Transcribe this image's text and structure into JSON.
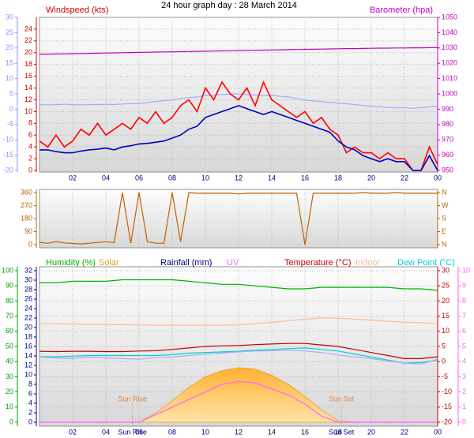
{
  "chart_data": [
    {
      "type": "line",
      "title": "24 hour graph day : 28 March 2014",
      "x": [
        0,
        0.5,
        1,
        1.5,
        2,
        2.5,
        3,
        3.5,
        4,
        4.5,
        5,
        5.5,
        6,
        6.5,
        7,
        7.5,
        8,
        8.5,
        9,
        9.5,
        10,
        10.5,
        11,
        11.5,
        12,
        12.5,
        13,
        13.5,
        14,
        14.5,
        15,
        15.5,
        16,
        16.5,
        17,
        17.5,
        18,
        18.5,
        19,
        19.5,
        20,
        20.5,
        21,
        21.5,
        22,
        22.5,
        23,
        23.5,
        24
      ],
      "xlim": [
        0,
        24
      ],
      "xticks": [
        {
          "value": 2,
          "label": "02"
        },
        {
          "value": 4,
          "label": "04"
        },
        {
          "value": 6,
          "label": "06"
        },
        {
          "value": 8,
          "label": "08"
        },
        10,
        12,
        14,
        16,
        18,
        20,
        22,
        {
          "value": 24,
          "label": "00"
        }
      ],
      "grid": true,
      "axes": [
        {
          "id": "y3",
          "side": "left",
          "color": "#9090ff",
          "lim": [
            -20,
            30
          ],
          "ticks": [
            -20,
            -15,
            -10,
            -5,
            0,
            5,
            10,
            15,
            20,
            25,
            30
          ]
        },
        {
          "id": "y",
          "side": "left",
          "color": "#d00000",
          "title": "Windspeed (kts)",
          "lim": [
            0,
            26
          ],
          "ticks": [
            0,
            2,
            4,
            6,
            8,
            10,
            12,
            14,
            16,
            18,
            20,
            22,
            24
          ]
        },
        {
          "id": "y2",
          "side": "right",
          "color": "#c000c0",
          "title": "Barometer (hpa)",
          "lim": [
            950,
            1050
          ],
          "ticks": [
            950,
            960,
            970,
            980,
            990,
            1000,
            1010,
            1020,
            1030,
            1040,
            1050
          ]
        }
      ],
      "series": [
        {
          "color": "#a8a8ff",
          "axis": "y3",
          "values": [
            1.5,
            1.4,
            1.5,
            1.6,
            1.5,
            1.4,
            1.5,
            1.5,
            1.6,
            1.5,
            1.7,
            1.8,
            1.8,
            2.2,
            2.5,
            2.8,
            3.0,
            3.5,
            3.8,
            4.0,
            4.5,
            4.6,
            4.8,
            5.0,
            5.0,
            4.8,
            4.7,
            4.5,
            4.6,
            4.2,
            4.0,
            3.5,
            3.0,
            2.7,
            2.5,
            2.2,
            2.0,
            1.8,
            1.5,
            1.2,
            1.0,
            0.8,
            0.6,
            0.5,
            0.5,
            0.3,
            0.5,
            0.8,
            1.0
          ]
        },
        {
          "color": "#c000c0",
          "axis": "y2",
          "values": [
            1026,
            1026,
            1026.1,
            1026.2,
            1026.3,
            1026.4,
            1026.5,
            1026.6,
            1026.7,
            1026.8,
            1026.9,
            1027,
            1027.1,
            1027.2,
            1027.3,
            1027.4,
            1027.5,
            1027.6,
            1027.7,
            1027.8,
            1027.9,
            1028,
            1028.1,
            1028.2,
            1028.3,
            1028.4,
            1028.5,
            1028.6,
            1028.7,
            1028.8,
            1028.9,
            1029,
            1029.1,
            1029.2,
            1029.3,
            1029.4,
            1029.5,
            1029.6,
            1029.6,
            1029.7,
            1029.8,
            1029.9,
            1029.9,
            1030,
            1030,
            1030.1,
            1030.1,
            1030.2,
            1030.2
          ]
        },
        {
          "color": "#ff0000",
          "axis": "y",
          "values": [
            5,
            4,
            6,
            4,
            5,
            7,
            6,
            8,
            6,
            7,
            8,
            7,
            9,
            8,
            10,
            8,
            9,
            11,
            12,
            10,
            14,
            12,
            15,
            13,
            12,
            14,
            11,
            15,
            12,
            11,
            10,
            9,
            10,
            8,
            9,
            7,
            6,
            3,
            4,
            3,
            3,
            2,
            3,
            2,
            2,
            0,
            0,
            4,
            1
          ]
        },
        {
          "color": "#0000c0",
          "axis": "y",
          "values": [
            3.5,
            3.5,
            3.2,
            3,
            3,
            3.3,
            3.5,
            3.6,
            3.8,
            3.5,
            4,
            4.2,
            4.5,
            4.6,
            4.8,
            5,
            5.5,
            6,
            7,
            7.5,
            9,
            9.5,
            10,
            10.5,
            11,
            10.5,
            10,
            9.5,
            10,
            9.5,
            9,
            8.5,
            8,
            7.5,
            7,
            6.5,
            5,
            4,
            3.5,
            2.5,
            2,
            1.5,
            2,
            1.5,
            1.5,
            0,
            0,
            2.5,
            0
          ]
        }
      ]
    },
    {
      "type": "line",
      "x": [
        0,
        0.5,
        1,
        1.5,
        2,
        2.5,
        3,
        3.5,
        4,
        4.5,
        5,
        5.5,
        6,
        6.5,
        7,
        7.5,
        8,
        8.5,
        9,
        9.5,
        10,
        10.5,
        11,
        11.5,
        12,
        12.5,
        13,
        13.5,
        14,
        14.5,
        15,
        15.5,
        16,
        16.5,
        17,
        17.5,
        18,
        18.5,
        19,
        19.5,
        20,
        20.5,
        21,
        21.5,
        22,
        22.5,
        23,
        23.5,
        24
      ],
      "xlim": [
        0,
        24
      ],
      "axes": [
        {
          "id": "y",
          "side": "left",
          "color": "#c06000",
          "lim": [
            0,
            360
          ],
          "ticks": [
            0,
            90,
            180,
            270,
            360
          ]
        },
        {
          "id": "y2",
          "side": "right",
          "color": "#c06000",
          "lim": [
            0,
            360
          ],
          "ticks": [
            {
              "value": 360,
              "label": "N"
            },
            {
              "value": 270,
              "label": "W"
            },
            {
              "value": 180,
              "label": "S"
            },
            {
              "value": 90,
              "label": "E"
            },
            {
              "value": 0,
              "label": "N"
            }
          ]
        }
      ],
      "series": [
        {
          "color": "#c06000",
          "axis": "y",
          "values": [
            15,
            10,
            20,
            12,
            8,
            5,
            10,
            15,
            20,
            15,
            360,
            10,
            360,
            20,
            10,
            10,
            360,
            20,
            360,
            355,
            355,
            355,
            355,
            355,
            350,
            355,
            355,
            355,
            355,
            355,
            355,
            355,
            0,
            355,
            355,
            355,
            355,
            355,
            355,
            360,
            355,
            355,
            355,
            360,
            355,
            355,
            355,
            355,
            355
          ]
        }
      ]
    },
    {
      "type": "line",
      "x": [
        0,
        1,
        2,
        3,
        4,
        5,
        6,
        7,
        8,
        9,
        10,
        11,
        12,
        13,
        14,
        15,
        16,
        17,
        18,
        19,
        20,
        21,
        22,
        23,
        24
      ],
      "xlim": [
        0,
        24
      ],
      "xticks": [
        {
          "value": 2,
          "label": "02"
        },
        {
          "value": 4,
          "label": "04"
        },
        {
          "value": 6,
          "label": "06"
        },
        {
          "value": 8,
          "label": "08"
        },
        10,
        12,
        14,
        16,
        18,
        20,
        22,
        {
          "value": 24,
          "label": "00"
        }
      ],
      "grid": true,
      "axes": [
        {
          "id": "y",
          "side": "left",
          "color": "#00a000",
          "lim": [
            0,
            100
          ],
          "ticks": [
            0,
            10,
            20,
            30,
            40,
            50,
            60,
            70,
            80,
            90,
            100
          ]
        },
        {
          "id": "y3",
          "side": "left",
          "color": "#000080",
          "title": "Rainfall (mm)",
          "lim": [
            0,
            32
          ],
          "ticks": [
            0,
            2,
            4,
            6,
            8,
            10,
            12,
            14,
            16,
            18,
            20,
            22,
            24,
            26,
            28,
            30,
            32
          ]
        },
        {
          "id": "y2",
          "side": "right",
          "color": "#c00000",
          "lim": [
            -20,
            30
          ],
          "ticks": [
            -20,
            -15,
            -10,
            -5,
            0,
            5,
            10,
            15,
            20,
            25,
            30
          ]
        },
        {
          "id": "y4",
          "side": "right",
          "color": "#ff60ff",
          "lim": [
            0,
            10
          ],
          "ticks": [
            0,
            1,
            2,
            3,
            4,
            5,
            6,
            7,
            8,
            9,
            10
          ]
        }
      ],
      "annotations": [
        {
          "text": "Sun Rise",
          "x": 5.6
        },
        {
          "text": "Sun Set",
          "x": 18.2
        }
      ],
      "series": [
        {
          "name": "Humidity (%)",
          "color": "#00b000",
          "axis": "y",
          "values": [
            92,
            92,
            93,
            93,
            93,
            94,
            94,
            94,
            94,
            93,
            92,
            91,
            91,
            90,
            89,
            88,
            88,
            89,
            89,
            89,
            89,
            89,
            88,
            88,
            87
          ]
        },
        {
          "name": "Solar",
          "color": "#e0a020",
          "axis": "y",
          "fill": true,
          "values": [
            0,
            0,
            0,
            0,
            0,
            0,
            0,
            6,
            14,
            23,
            30,
            34,
            36,
            35,
            31,
            25,
            17,
            8,
            1,
            0,
            0,
            0,
            0,
            0,
            0
          ]
        },
        {
          "name": "UV",
          "color": "#ff60ff",
          "axis": "y4",
          "values": [
            0,
            0,
            0,
            0,
            0,
            0,
            0,
            0.5,
            1,
            1.5,
            2,
            2.5,
            2.7,
            2.6,
            2.2,
            1.8,
            1.2,
            0.4,
            0,
            0,
            0,
            0,
            0,
            0,
            0
          ]
        },
        {
          "name": "Temperature (°C)",
          "color": "#c00000",
          "axis": "y2",
          "values": [
            3.4,
            3.3,
            3.4,
            3.4,
            3.3,
            3.3,
            3.5,
            3.6,
            4,
            4.5,
            5,
            5.2,
            5.3,
            5.6,
            5.8,
            6,
            6,
            5.5,
            5,
            4,
            3,
            2,
            1,
            1,
            1.6
          ]
        },
        {
          "name": "Indoor",
          "color": "#ffb898",
          "axis": "y2",
          "values": [
            12.5,
            12.5,
            12.4,
            12.3,
            12.2,
            12.2,
            12.1,
            12,
            12,
            12,
            12,
            12,
            12.1,
            12.5,
            13,
            13.5,
            14,
            14.4,
            14.3,
            14,
            13.7,
            13.3,
            13,
            12.8,
            12.5
          ]
        },
        {
          "name": "Dew Point (°C)",
          "color": "#00d0d0",
          "axis": "y2",
          "values": [
            1.6,
            1.6,
            1.8,
            2,
            2,
            2,
            2,
            2,
            2.3,
            2.8,
            3,
            3.2,
            3.4,
            3.8,
            4,
            4.3,
            4.5,
            4,
            3.5,
            2.5,
            1.5,
            0.5,
            -0.5,
            -0.3,
            0.5
          ]
        },
        {
          "color": "#a8a8ff",
          "axis": "y2",
          "values": [
            1.5,
            1.2,
            1,
            1.5,
            1.2,
            1,
            0.8,
            1.3,
            1.5,
            2,
            2.5,
            2.8,
            3.2,
            3.5,
            3.6,
            3.8,
            3.5,
            3,
            2.2,
            1.5,
            1,
            0.2,
            -0.5,
            -0.8,
            0.8
          ]
        }
      ]
    }
  ]
}
